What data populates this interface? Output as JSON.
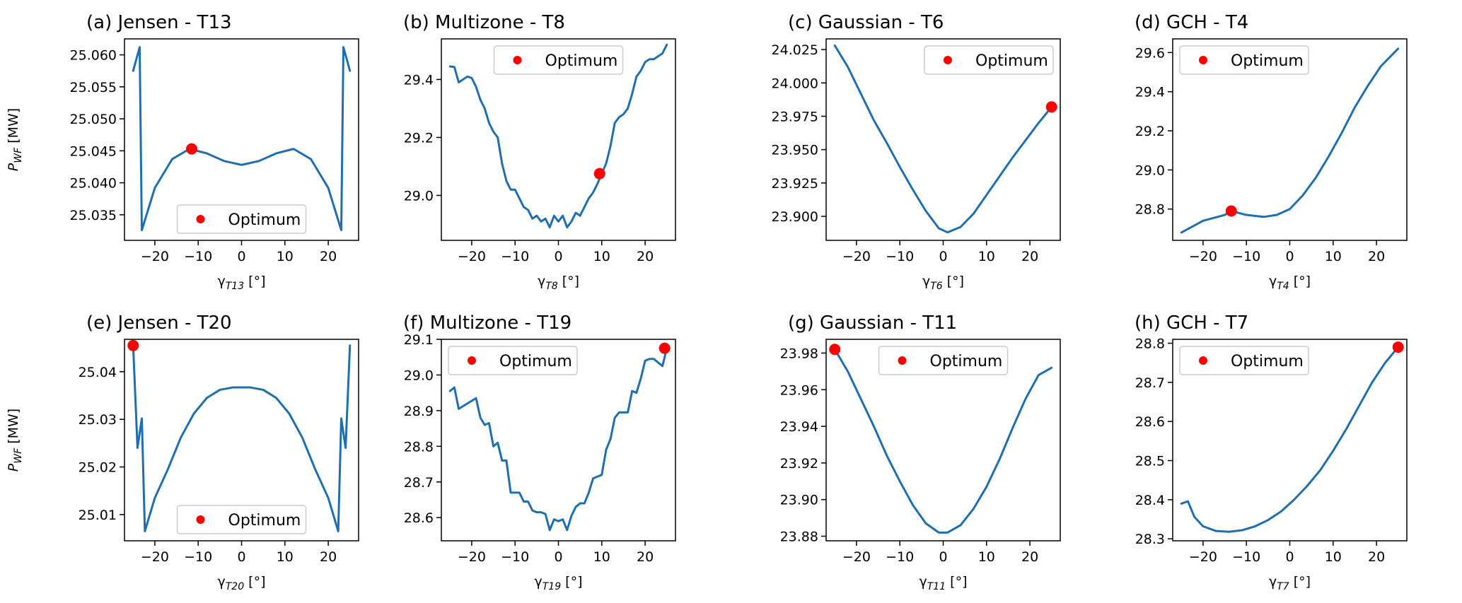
{
  "colors": {
    "line": "#1f6fb0",
    "optimum": "#ff0000"
  },
  "legend_label": "Optimum",
  "y_label_prefix": "P",
  "y_label_sub": "WF",
  "y_label_suffix": " [MW]",
  "x_label_prefix": "γ",
  "x_label_suffix": " [°]",
  "chart_data": [
    {
      "id": "a",
      "title": "(a) Jensen - T13",
      "type": "line",
      "x_sub": "T13",
      "show_ylabel": true,
      "xlim": [
        -27,
        27
      ],
      "ylim": [
        25.031,
        25.0625
      ],
      "xticks": [
        -20,
        -10,
        0,
        10,
        20
      ],
      "yticks": [
        25.035,
        25.04,
        25.045,
        25.05,
        25.055,
        25.06
      ],
      "ytick_decimals": 3,
      "legend_loc": "lower center",
      "x": [
        -25,
        -23.5,
        -23,
        -20,
        -16,
        -12,
        -8,
        -4,
        0,
        4,
        8,
        12,
        16,
        20,
        23,
        23.5,
        25
      ],
      "y": [
        25.0575,
        25.0612,
        25.0326,
        25.0392,
        25.0437,
        25.0453,
        25.0446,
        25.0434,
        25.0428,
        25.0434,
        25.0446,
        25.0453,
        25.0437,
        25.0392,
        25.0326,
        25.0612,
        25.0575
      ],
      "optimum": [
        -11.5,
        25.0453
      ]
    },
    {
      "id": "b",
      "title": "(b) Multizone - T8",
      "type": "line",
      "x_sub": "T8",
      "show_ylabel": false,
      "xlim": [
        -27,
        27
      ],
      "ylim": [
        28.845,
        29.54
      ],
      "xticks": [
        -20,
        -10,
        0,
        10,
        20
      ],
      "yticks": [
        29.0,
        29.2,
        29.4
      ],
      "ytick_decimals": 1,
      "legend_loc": "upper center",
      "x": [
        -25,
        -24,
        -23,
        -21,
        -20,
        -19,
        -18,
        -17,
        -16,
        -15,
        -14,
        -13,
        -12,
        -11,
        -10,
        -9,
        -8,
        -7,
        -6,
        -5,
        -4,
        -3,
        -2,
        -1,
        0,
        1,
        2,
        3,
        4,
        5,
        6,
        7,
        8,
        9,
        10,
        11,
        12,
        13,
        14,
        15,
        16,
        17,
        18,
        19,
        20,
        21,
        22,
        23,
        24,
        25
      ],
      "y": [
        29.445,
        29.443,
        29.39,
        29.41,
        29.405,
        29.375,
        29.33,
        29.3,
        29.25,
        29.22,
        29.2,
        29.11,
        29.05,
        29.02,
        29.02,
        28.99,
        28.96,
        28.95,
        28.92,
        28.93,
        28.91,
        28.92,
        28.89,
        28.93,
        28.91,
        28.93,
        28.89,
        28.91,
        28.94,
        28.93,
        28.96,
        28.99,
        29.01,
        29.04,
        29.075,
        29.11,
        29.17,
        29.25,
        29.27,
        29.28,
        29.3,
        29.35,
        29.41,
        29.43,
        29.46,
        29.47,
        29.47,
        29.48,
        29.49,
        29.52
      ],
      "optimum": [
        9.5,
        29.075
      ]
    },
    {
      "id": "c",
      "title": "(c) Gaussian - T6",
      "type": "line",
      "x_sub": "T6",
      "show_ylabel": false,
      "xlim": [
        -27,
        27
      ],
      "ylim": [
        23.882,
        24.033
      ],
      "xticks": [
        -20,
        -10,
        0,
        10,
        20
      ],
      "yticks": [
        23.9,
        23.925,
        23.95,
        23.975,
        24.0,
        24.025
      ],
      "ytick_decimals": 3,
      "legend_loc": "upper right",
      "x": [
        -25,
        -22,
        -19,
        -16,
        -13,
        -10,
        -7,
        -4,
        -1,
        1,
        4,
        7,
        10,
        13,
        16,
        19,
        22,
        25
      ],
      "y": [
        24.028,
        24.012,
        23.992,
        23.972,
        23.955,
        23.937,
        23.92,
        23.904,
        23.891,
        23.888,
        23.892,
        23.902,
        23.916,
        23.93,
        23.944,
        23.957,
        23.97,
        23.982
      ],
      "optimum": [
        25,
        23.982
      ]
    },
    {
      "id": "d",
      "title": "(d) GCH - T4",
      "type": "line",
      "x_sub": "T4",
      "show_ylabel": false,
      "xlim": [
        -27,
        27
      ],
      "ylim": [
        28.64,
        29.67
      ],
      "xticks": [
        -20,
        -10,
        0,
        10,
        20
      ],
      "yticks": [
        28.8,
        29.0,
        29.2,
        29.4,
        29.6
      ],
      "ytick_decimals": 1,
      "legend_loc": "upper left",
      "x": [
        -25,
        -20,
        -15,
        -13.5,
        -10,
        -6,
        -3,
        0,
        3,
        6,
        9,
        12,
        15,
        18,
        21,
        25
      ],
      "y": [
        28.68,
        28.74,
        28.77,
        28.79,
        28.77,
        28.76,
        28.77,
        28.8,
        28.87,
        28.96,
        29.07,
        29.19,
        29.32,
        29.43,
        29.53,
        29.62
      ],
      "optimum": [
        -13.5,
        28.79
      ]
    },
    {
      "id": "e",
      "title": "(e) Jensen - T20",
      "type": "line",
      "x_sub": "T20",
      "show_ylabel": true,
      "xlim": [
        -27,
        27
      ],
      "ylim": [
        25.0045,
        25.0468
      ],
      "xticks": [
        -20,
        -10,
        0,
        10,
        20
      ],
      "yticks": [
        25.01,
        25.02,
        25.03,
        25.04
      ],
      "ytick_decimals": 2,
      "legend_loc": "lower center",
      "x": [
        -25,
        -24,
        -23,
        -22.3,
        -20,
        -17,
        -14,
        -11,
        -8,
        -5,
        -2,
        0,
        2,
        5,
        8,
        11,
        14,
        17,
        20,
        22.3,
        23,
        24,
        25
      ],
      "y": [
        25.0455,
        25.024,
        25.0302,
        25.0065,
        25.0135,
        25.0195,
        25.0262,
        25.0312,
        25.0345,
        25.0362,
        25.0367,
        25.0367,
        25.0367,
        25.0362,
        25.0345,
        25.0312,
        25.0262,
        25.0195,
        25.0135,
        25.0065,
        25.0302,
        25.024,
        25.0455
      ],
      "optimum": [
        -25,
        25.0455
      ]
    },
    {
      "id": "f",
      "title": "(f) Multizone - T19",
      "type": "line",
      "x_sub": "T19",
      "show_ylabel": false,
      "xlim": [
        -27,
        27
      ],
      "ylim": [
        28.535,
        29.1
      ],
      "xticks": [
        -20,
        -10,
        0,
        10,
        20
      ],
      "yticks": [
        28.6,
        28.7,
        28.8,
        28.9,
        29.0,
        29.1
      ],
      "ytick_decimals": 1,
      "legend_loc": "upper left",
      "x": [
        -25,
        -24,
        -23,
        -19,
        -18,
        -17,
        -16,
        -15,
        -14,
        -13,
        -12,
        -11,
        -10,
        -9,
        -8,
        -7,
        -6,
        -5,
        -4,
        -3,
        -2,
        -1,
        0,
        1,
        2,
        3,
        4,
        5,
        6,
        7,
        8,
        9,
        10,
        11,
        12,
        13,
        14,
        15,
        16,
        17,
        18,
        19,
        20,
        21,
        22,
        23,
        24,
        25
      ],
      "y": [
        28.955,
        28.965,
        28.905,
        28.935,
        28.88,
        28.86,
        28.865,
        28.8,
        28.81,
        28.76,
        28.76,
        28.67,
        28.67,
        28.67,
        28.645,
        28.645,
        28.62,
        28.615,
        28.615,
        28.61,
        28.565,
        28.595,
        28.59,
        28.595,
        28.565,
        28.605,
        28.63,
        28.64,
        28.64,
        28.67,
        28.71,
        28.715,
        28.72,
        28.79,
        28.82,
        28.88,
        28.895,
        28.895,
        28.895,
        28.955,
        28.95,
        28.99,
        29.04,
        29.045,
        29.045,
        29.035,
        29.025,
        29.075
      ],
      "optimum": [
        24.5,
        29.075
      ]
    },
    {
      "id": "g",
      "title": "(g) Gaussian - T11",
      "type": "line",
      "x_sub": "T11",
      "show_ylabel": false,
      "xlim": [
        -27,
        27
      ],
      "ylim": [
        23.8775,
        23.9875
      ],
      "xticks": [
        -20,
        -10,
        0,
        10,
        20
      ],
      "yticks": [
        23.88,
        23.9,
        23.92,
        23.94,
        23.96,
        23.98
      ],
      "ytick_decimals": 2,
      "legend_loc": "upper center",
      "x": [
        -25,
        -22,
        -19,
        -16,
        -13,
        -10,
        -7,
        -4,
        -1,
        1,
        4,
        7,
        10,
        13,
        16,
        19,
        22,
        25
      ],
      "y": [
        23.982,
        23.97,
        23.955,
        23.94,
        23.924,
        23.91,
        23.897,
        23.887,
        23.882,
        23.882,
        23.886,
        23.895,
        23.907,
        23.922,
        23.939,
        23.955,
        23.968,
        23.972
      ],
      "optimum": [
        -25,
        23.982
      ]
    },
    {
      "id": "h",
      "title": "(h) GCH - T7",
      "type": "line",
      "x_sub": "T7",
      "show_ylabel": false,
      "xlim": [
        -27,
        27
      ],
      "ylim": [
        28.295,
        28.81
      ],
      "xticks": [
        -20,
        -10,
        0,
        10,
        20
      ],
      "yticks": [
        28.3,
        28.4,
        28.5,
        28.6,
        28.7,
        28.8
      ],
      "ytick_decimals": 1,
      "legend_loc": "upper left",
      "x": [
        -25,
        -23.5,
        -22,
        -20,
        -17,
        -14,
        -11,
        -8,
        -5,
        -2,
        1,
        4,
        7,
        10,
        13,
        16,
        19,
        22,
        25
      ],
      "y": [
        28.39,
        28.396,
        28.356,
        28.332,
        28.32,
        28.318,
        28.322,
        28.332,
        28.348,
        28.37,
        28.4,
        28.435,
        28.475,
        28.525,
        28.58,
        28.64,
        28.7,
        28.75,
        28.79
      ],
      "optimum": [
        25,
        28.79
      ]
    }
  ]
}
